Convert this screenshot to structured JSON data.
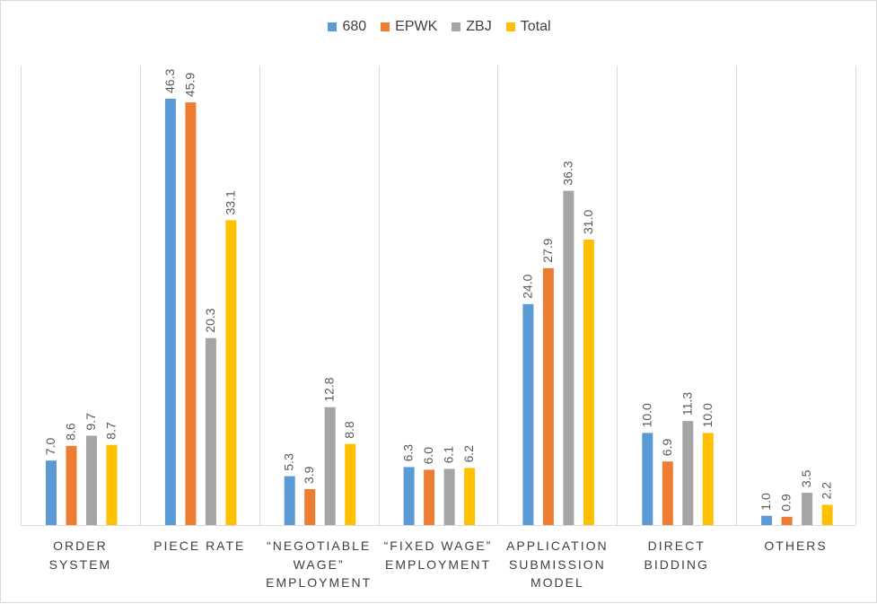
{
  "chart_data": {
    "type": "bar",
    "categories": [
      [
        "ORDER",
        "SYSTEM"
      ],
      [
        "PIECE RATE"
      ],
      [
        "“NEGOTIABLE",
        "WAGE”",
        "EMPLOYMENT"
      ],
      [
        "“FIXED WAGE”",
        "EMPLOYMENT"
      ],
      [
        "APPLICATION",
        "SUBMISSION",
        "MODEL"
      ],
      [
        "DIRECT",
        "BIDDING"
      ],
      [
        "OTHERS"
      ]
    ],
    "series": [
      {
        "name": "680",
        "color": "#5b9bd5",
        "values": [
          7.0,
          46.3,
          5.3,
          6.3,
          24.0,
          10.0,
          1.0
        ],
        "labels": [
          "7.0",
          "46.3",
          "5.3",
          "6.3",
          "24.0",
          "10.0",
          "1.0"
        ]
      },
      {
        "name": "EPWK",
        "color": "#ed7d31",
        "values": [
          8.6,
          45.9,
          3.9,
          6.0,
          27.9,
          6.9,
          0.9
        ],
        "labels": [
          "8.6",
          "45.9",
          "3.9",
          "6.0",
          "27.9",
          "6.9",
          "0.9"
        ]
      },
      {
        "name": "ZBJ",
        "color": "#a5a5a5",
        "values": [
          9.7,
          20.3,
          12.8,
          6.1,
          36.3,
          11.3,
          3.5
        ],
        "labels": [
          "9.7",
          "20.3",
          "12.8",
          "6.1",
          "36.3",
          "11.3",
          "3.5"
        ]
      },
      {
        "name": "Total",
        "color": "#ffc000",
        "values": [
          8.7,
          33.1,
          8.8,
          6.2,
          31.0,
          10.0,
          2.2
        ],
        "labels": [
          "8.7",
          "33.1",
          "8.8",
          "6.2",
          "31.0",
          "10.0",
          "2.2"
        ]
      }
    ],
    "ylim": [
      0,
      50
    ],
    "legend_position": "top",
    "gridlines": "vertical category separators"
  }
}
